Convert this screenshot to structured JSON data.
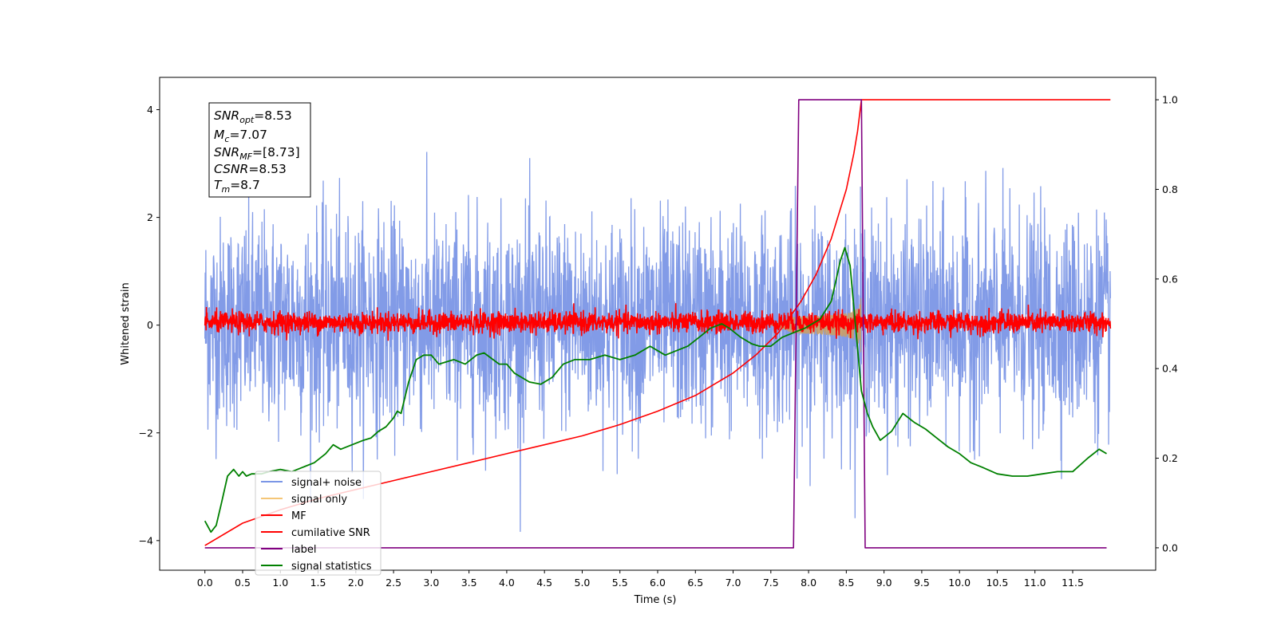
{
  "chart_data": {
    "type": "line",
    "xlabel": "Time (s)",
    "ylabel": "Whitened strain",
    "xlim": [
      -0.6,
      12.6
    ],
    "ylim": [
      -4.55,
      4.6
    ],
    "y2lim": [
      -0.05,
      1.05
    ],
    "x_ticks": [
      "0.0",
      "0.5",
      "1.0",
      "1.5",
      "2.0",
      "2.5",
      "3.0",
      "3.5",
      "4.0",
      "4.5",
      "5.0",
      "5.5",
      "6.0",
      "6.5",
      "7.0",
      "7.5",
      "8.0",
      "8.5",
      "9.0",
      "9.5",
      "10.0",
      "10.5",
      "11.0",
      "11.5"
    ],
    "y_ticks": [
      "4",
      "2",
      "0",
      "−2",
      "−4"
    ],
    "y2_ticks": [
      "1.0",
      "0.8",
      "0.6",
      "0.4",
      "0.2",
      "0.0"
    ],
    "annotation": {
      "snr_opt": {
        "var": "SNR",
        "sub": "opt",
        "value": "=8.53"
      },
      "mc": {
        "var": "M",
        "sub": "c",
        "value": "=7.07"
      },
      "snr_mf": {
        "var": "SNR",
        "sub": "MF",
        "value": "=[8.73]"
      },
      "csnr": {
        "var": "CSNR",
        "sub": "",
        "value": "=8.53"
      },
      "tm": {
        "var": "T",
        "sub": "m",
        "value": "=8.7"
      }
    },
    "legend": {
      "position": "lower-left",
      "entries": [
        {
          "label": "signal+ noise",
          "color": "#7b96e6"
        },
        {
          "label": "signal only",
          "color": "#f5c677"
        },
        {
          "label": "MF",
          "color": "#ff0000"
        },
        {
          "label": "cumilative SNR",
          "color": "#ff0000"
        },
        {
          "label": "label",
          "color": "#800080"
        },
        {
          "label": "signal statistics",
          "color": "#008000"
        }
      ]
    },
    "series": [
      {
        "name": "signal+ noise",
        "axis": "left",
        "style": "noise",
        "x_range": [
          0,
          12
        ],
        "band": [
          -1.4,
          1.5
        ],
        "extremes": [
          -4.1,
          3.9
        ]
      },
      {
        "name": "signal only",
        "axis": "left",
        "style": "chirp",
        "t_start": 7.5,
        "t_merge": 8.7,
        "peak_amplitude": 0.6
      },
      {
        "name": "MF",
        "axis": "left",
        "style": "noise",
        "x_range": [
          0,
          12
        ],
        "band": [
          -0.1,
          0.2
        ]
      },
      {
        "name": "cumilative SNR",
        "axis": "right",
        "x": [
          0,
          0.5,
          1,
          1.5,
          2,
          2.5,
          3,
          3.5,
          4,
          4.5,
          5,
          5.5,
          6,
          6.5,
          7,
          7.3,
          7.6,
          7.9,
          8.1,
          8.3,
          8.5,
          8.6,
          8.65,
          8.7,
          12
        ],
        "y": [
          0.005,
          0.055,
          0.085,
          0.11,
          0.13,
          0.15,
          0.17,
          0.19,
          0.21,
          0.23,
          0.25,
          0.275,
          0.305,
          0.34,
          0.39,
          0.43,
          0.48,
          0.55,
          0.61,
          0.69,
          0.8,
          0.88,
          0.93,
          1.0,
          1.0
        ]
      },
      {
        "name": "label",
        "axis": "right",
        "x": [
          0,
          7.8,
          7.87,
          8.7,
          8.75,
          11.95
        ],
        "y": [
          0,
          0,
          1,
          1,
          0,
          0
        ]
      },
      {
        "name": "signal statistics",
        "axis": "right",
        "x": [
          0,
          0.08,
          0.15,
          0.22,
          0.3,
          0.38,
          0.45,
          0.5,
          0.55,
          0.62,
          0.75,
          0.85,
          1.0,
          1.15,
          1.3,
          1.45,
          1.6,
          1.7,
          1.8,
          1.95,
          2.1,
          2.2,
          2.3,
          2.4,
          2.5,
          2.55,
          2.6,
          2.7,
          2.8,
          2.9,
          3.0,
          3.1,
          3.3,
          3.45,
          3.6,
          3.7,
          3.9,
          4.0,
          4.1,
          4.3,
          4.45,
          4.6,
          4.75,
          4.9,
          5.1,
          5.3,
          5.5,
          5.7,
          5.9,
          6.0,
          6.1,
          6.25,
          6.4,
          6.55,
          6.7,
          6.85,
          6.95,
          7.1,
          7.25,
          7.35,
          7.5,
          7.65,
          7.8,
          7.95,
          8.05,
          8.15,
          8.3,
          8.42,
          8.48,
          8.55,
          8.62,
          8.7,
          8.78,
          8.85,
          8.95,
          9.1,
          9.25,
          9.4,
          9.55,
          9.7,
          9.85,
          10.0,
          10.15,
          10.3,
          10.5,
          10.7,
          10.9,
          11.1,
          11.3,
          11.5,
          11.7,
          11.85,
          11.95
        ],
        "y": [
          0.06,
          0.035,
          0.05,
          0.1,
          0.16,
          0.175,
          0.16,
          0.17,
          0.16,
          0.165,
          0.165,
          0.17,
          0.175,
          0.17,
          0.18,
          0.19,
          0.21,
          0.23,
          0.22,
          0.23,
          0.24,
          0.245,
          0.26,
          0.27,
          0.29,
          0.305,
          0.3,
          0.37,
          0.42,
          0.43,
          0.43,
          0.41,
          0.42,
          0.41,
          0.43,
          0.435,
          0.41,
          0.41,
          0.39,
          0.37,
          0.365,
          0.38,
          0.41,
          0.42,
          0.42,
          0.43,
          0.42,
          0.43,
          0.45,
          0.44,
          0.43,
          0.44,
          0.45,
          0.47,
          0.49,
          0.5,
          0.49,
          0.47,
          0.455,
          0.45,
          0.45,
          0.47,
          0.48,
          0.49,
          0.5,
          0.51,
          0.55,
          0.64,
          0.67,
          0.63,
          0.5,
          0.35,
          0.3,
          0.27,
          0.24,
          0.26,
          0.3,
          0.28,
          0.265,
          0.245,
          0.225,
          0.21,
          0.19,
          0.18,
          0.165,
          0.16,
          0.16,
          0.165,
          0.17,
          0.17,
          0.2,
          0.22,
          0.21
        ]
      }
    ]
  }
}
